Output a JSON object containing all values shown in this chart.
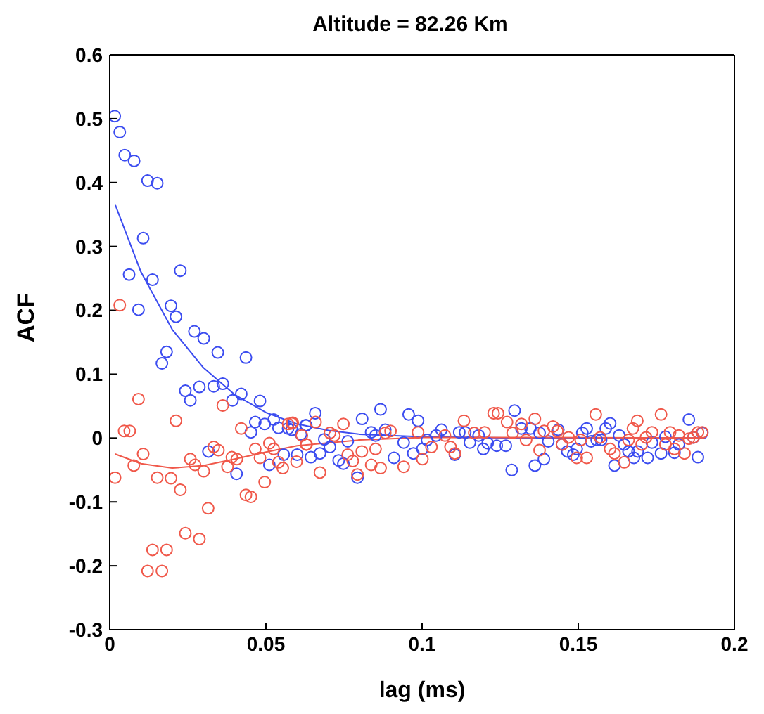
{
  "chart_data": {
    "type": "scatter",
    "title": "Altitude = 82.26 Km",
    "xlabel": "lag (ms)",
    "ylabel": "ACF",
    "xlim": [
      0,
      0.2
    ],
    "xticks": [
      0,
      0.05,
      0.1,
      0.15,
      0.2
    ],
    "ylim": [
      -0.3,
      0.6
    ],
    "yticks": [
      -0.3,
      -0.2,
      -0.1,
      0,
      0.1,
      0.2,
      0.3,
      0.4,
      0.5,
      0.6
    ],
    "grid": false,
    "legend": false,
    "marker": "circle",
    "series": [
      {
        "color": "#3b4cf0",
        "x": [
          0.0016,
          0.0032,
          0.0048,
          0.0078,
          0.0121,
          0.0152,
          0.0107,
          0.0062,
          0.0137,
          0.0226,
          0.0092,
          0.0196,
          0.0212,
          0.0271,
          0.0301,
          0.0346,
          0.0436,
          0.0182,
          0.0167,
          0.0242,
          0.0258,
          0.0287,
          0.0333,
          0.0362,
          0.0393,
          0.0421,
          0.0481,
          0.0466,
          0.0452,
          0.0496,
          0.0525,
          0.054,
          0.0571,
          0.0629,
          0.0658,
          0.0316,
          0.0406,
          0.0511,
          0.0557,
          0.06,
          0.0644,
          0.0627,
          0.0583,
          0.0612,
          0.0673,
          0.0687,
          0.0705,
          0.0733,
          0.0748,
          0.0762,
          0.0793,
          0.0808,
          0.0837,
          0.0851,
          0.0867,
          0.0882,
          0.091,
          0.0941,
          0.0957,
          0.0972,
          0.0987,
          0.1001,
          0.1016,
          0.1045,
          0.1062,
          0.1105,
          0.1119,
          0.1138,
          0.1153,
          0.1181,
          0.1196,
          0.121,
          0.1239,
          0.1268,
          0.1287,
          0.1296,
          0.1318,
          0.1347,
          0.1361,
          0.1376,
          0.139,
          0.1404,
          0.1436,
          0.1448,
          0.1465,
          0.1484,
          0.1495,
          0.1513,
          0.1527,
          0.1541,
          0.1559,
          0.1573,
          0.1588,
          0.1602,
          0.1616,
          0.1631,
          0.1647,
          0.1661,
          0.1678,
          0.169,
          0.1722,
          0.1736,
          0.1765,
          0.1779,
          0.1808,
          0.1822,
          0.1854,
          0.1869,
          0.1883,
          0.1897
        ],
        "values": [
          0.504,
          0.479,
          0.443,
          0.434,
          0.403,
          0.399,
          0.313,
          0.256,
          0.248,
          0.262,
          0.201,
          0.207,
          0.19,
          0.167,
          0.156,
          0.134,
          0.126,
          0.135,
          0.117,
          0.074,
          0.059,
          0.08,
          0.081,
          0.085,
          0.059,
          0.069,
          0.058,
          0.025,
          0.009,
          0.022,
          0.029,
          0.016,
          0.015,
          0.02,
          0.039,
          -0.021,
          -0.056,
          -0.042,
          -0.026,
          -0.026,
          -0.03,
          0.02,
          0.013,
          0.006,
          -0.024,
          -0.002,
          -0.014,
          -0.035,
          -0.04,
          -0.005,
          -0.062,
          0.03,
          0.009,
          0.004,
          0.045,
          0.013,
          -0.031,
          -0.007,
          0.037,
          -0.024,
          0.027,
          -0.017,
          -0.003,
          0.004,
          0.013,
          -0.026,
          0.009,
          0.009,
          -0.007,
          0.004,
          -0.017,
          -0.008,
          -0.012,
          -0.012,
          -0.05,
          0.043,
          0.015,
          0.015,
          -0.043,
          0.008,
          -0.033,
          -0.005,
          0.013,
          -0.01,
          -0.021,
          -0.026,
          -0.017,
          0.008,
          0.015,
          -0.005,
          -0.003,
          -0.003,
          0.015,
          0.023,
          -0.043,
          0.004,
          -0.01,
          -0.021,
          -0.031,
          -0.021,
          -0.031,
          -0.007,
          -0.024,
          0.002,
          -0.023,
          -0.01,
          0.029,
          0.001,
          -0.03,
          0.008
        ]
      },
      {
        "color": "#f0584a",
        "x": [
          0.0032,
          0.0092,
          0.0046,
          0.0064,
          0.0212,
          0.0362,
          0.0421,
          0.0107,
          0.0077,
          0.0017,
          0.0152,
          0.0196,
          0.0226,
          0.0258,
          0.0273,
          0.0301,
          0.0333,
          0.0348,
          0.0377,
          0.0391,
          0.0407,
          0.0436,
          0.0452,
          0.0466,
          0.0481,
          0.0496,
          0.0511,
          0.0525,
          0.054,
          0.0554,
          0.0571,
          0.0586,
          0.0615,
          0.0629,
          0.0315,
          0.0242,
          0.0287,
          0.0137,
          0.0182,
          0.0121,
          0.0167,
          0.0583,
          0.0598,
          0.063,
          0.0659,
          0.0673,
          0.0705,
          0.0719,
          0.0748,
          0.0762,
          0.0778,
          0.0793,
          0.0807,
          0.0837,
          0.0851,
          0.0867,
          0.0882,
          0.0899,
          0.0941,
          0.0987,
          0.1001,
          0.103,
          0.1073,
          0.1091,
          0.1105,
          0.1134,
          0.1167,
          0.12,
          0.1229,
          0.1243,
          0.1272,
          0.129,
          0.1318,
          0.1333,
          0.1361,
          0.1376,
          0.139,
          0.1419,
          0.1433,
          0.1448,
          0.1469,
          0.1495,
          0.1508,
          0.1527,
          0.1556,
          0.157,
          0.1602,
          0.1616,
          0.1647,
          0.1661,
          0.1675,
          0.1689,
          0.1703,
          0.1717,
          0.1736,
          0.1765,
          0.1779,
          0.1794,
          0.1808,
          0.1822,
          0.184,
          0.1854,
          0.1869,
          0.1883,
          0.1897
        ],
        "values": [
          0.208,
          0.061,
          0.011,
          0.011,
          0.027,
          0.051,
          0.015,
          -0.025,
          -0.043,
          -0.062,
          -0.062,
          -0.063,
          -0.081,
          -0.033,
          -0.042,
          -0.052,
          -0.014,
          -0.019,
          -0.045,
          -0.03,
          -0.033,
          -0.089,
          -0.092,
          -0.017,
          -0.031,
          -0.069,
          -0.008,
          -0.017,
          -0.038,
          -0.047,
          0.022,
          0.024,
          0.004,
          -0.01,
          -0.11,
          -0.149,
          -0.158,
          -0.175,
          -0.175,
          -0.208,
          -0.208,
          0.023,
          -0.037,
          -0.01,
          0.025,
          -0.054,
          0.008,
          0.004,
          0.022,
          -0.026,
          -0.036,
          -0.057,
          -0.021,
          -0.042,
          -0.017,
          -0.047,
          0.008,
          0.011,
          -0.045,
          0.009,
          -0.033,
          -0.014,
          0.004,
          -0.014,
          -0.024,
          0.027,
          0.008,
          0.009,
          0.039,
          0.039,
          0.025,
          0.008,
          0.022,
          -0.003,
          0.03,
          -0.019,
          0.011,
          0.018,
          0.011,
          -0.01,
          0.001,
          -0.031,
          -0.003,
          -0.031,
          0.037,
          0.001,
          -0.017,
          -0.024,
          -0.038,
          -0.003,
          0.015,
          0.027,
          -0.01,
          0.001,
          0.009,
          0.037,
          -0.01,
          0.009,
          -0.017,
          0.004,
          -0.024,
          -0.001,
          0.001,
          0.009,
          0.009
        ]
      },
      {
        "type": "line",
        "marker": "none",
        "color": "#3b4cf0",
        "x": [
          0.0017,
          0.01,
          0.02,
          0.03,
          0.04,
          0.05,
          0.06,
          0.07,
          0.08,
          0.1,
          0.13,
          0.19
        ],
        "values": [
          0.366,
          0.26,
          0.17,
          0.11,
          0.068,
          0.04,
          0.022,
          0.012,
          0.006,
          0.002,
          0,
          0
        ]
      },
      {
        "type": "line",
        "marker": "none",
        "color": "#f0584a",
        "x": [
          0.0017,
          0.01,
          0.02,
          0.03,
          0.04,
          0.05,
          0.06,
          0.08,
          0.1,
          0.13,
          0.19
        ],
        "values": [
          -0.025,
          -0.04,
          -0.047,
          -0.043,
          -0.033,
          -0.022,
          -0.012,
          -0.003,
          0.001,
          0.001,
          0
        ]
      }
    ]
  }
}
